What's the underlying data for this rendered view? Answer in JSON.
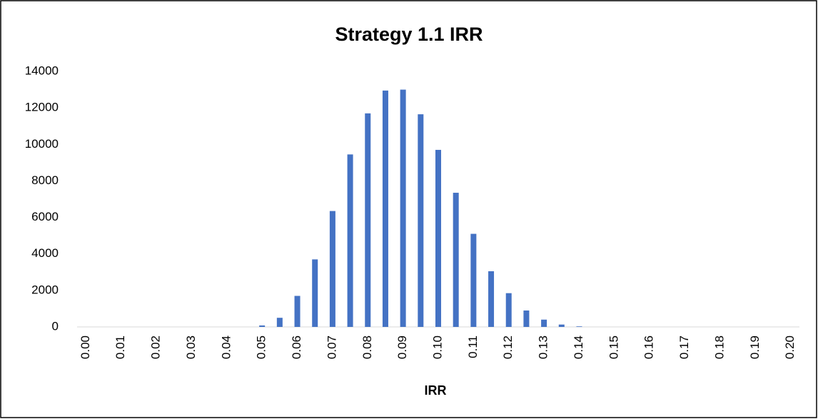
{
  "chart_data": {
    "type": "bar",
    "title": "Strategy 1.1 IRR",
    "x_label": "IRR",
    "categories": [
      "0.00",
      null,
      "0.01",
      null,
      "0.02",
      null,
      "0.03",
      null,
      "0.04",
      null,
      "0.05",
      null,
      "0.06",
      null,
      "0.07",
      null,
      "0.08",
      null,
      "0.09",
      null,
      "0.10",
      null,
      "0.11",
      null,
      "0.12",
      null,
      "0.13",
      null,
      "0.14",
      null,
      "0.15",
      null,
      "0.16",
      null,
      "0.17",
      null,
      "0.18",
      null,
      "0.19",
      null,
      "0.20"
    ],
    "values": [
      0,
      0,
      0,
      0,
      0,
      0,
      0,
      0,
      0,
      0,
      80,
      500,
      1700,
      3700,
      6350,
      9450,
      11700,
      12950,
      13000,
      11650,
      9700,
      7350,
      5100,
      3050,
      1850,
      900,
      400,
      130,
      30,
      0,
      0,
      0,
      0,
      0,
      0,
      0,
      0,
      0,
      0,
      0,
      0
    ],
    "color": "#4472c4",
    "ylim": [
      0,
      14000
    ],
    "yticks": [
      0,
      2000,
      4000,
      6000,
      8000,
      10000,
      12000,
      14000
    ],
    "grid": false
  }
}
